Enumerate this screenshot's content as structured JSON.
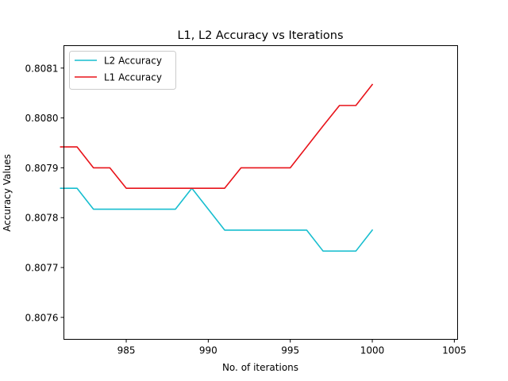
{
  "chart_data": {
    "type": "line",
    "title": "L1, L2 Accuracy vs Iterations",
    "xlabel": "No. of iterations",
    "ylabel": "Accuracy Values",
    "xlim": [
      981.2,
      1005.2
    ],
    "ylim": [
      0.807556,
      0.808145
    ],
    "x_ticks": [
      985,
      990,
      995,
      1000,
      1005
    ],
    "y_ticks": [
      0.8076,
      0.8077,
      0.8078,
      0.8079,
      0.808,
      0.8081
    ],
    "y_tick_labels": [
      "0.8076",
      "0.8077",
      "0.8078",
      "0.8079",
      "0.8080",
      "0.8081"
    ],
    "grid": false,
    "legend_position": "upper-left",
    "x": [
      981,
      982,
      983,
      984,
      985,
      986,
      987,
      988,
      989,
      990,
      991,
      992,
      993,
      994,
      995,
      996,
      997,
      998,
      999,
      1000
    ],
    "series": [
      {
        "name": "L2 Accuracy",
        "color": "#17becf",
        "values": [
          0.807859,
          0.807859,
          0.807817,
          0.807817,
          0.807817,
          0.807817,
          0.807817,
          0.807817,
          0.807859,
          0.807817,
          0.807775,
          0.807775,
          0.807775,
          0.807775,
          0.807775,
          0.807775,
          0.807733,
          0.807733,
          0.807733,
          0.807775
        ]
      },
      {
        "name": "L1 Accuracy",
        "color": "#e8131a",
        "values": [
          0.807942,
          0.807942,
          0.8079,
          0.8079,
          0.807859,
          0.807859,
          0.807859,
          0.807859,
          0.807859,
          0.807859,
          0.807859,
          0.8079,
          0.8079,
          0.8079,
          0.8079,
          0.807942,
          0.807984,
          0.808025,
          0.808025,
          0.808067
        ]
      }
    ]
  }
}
